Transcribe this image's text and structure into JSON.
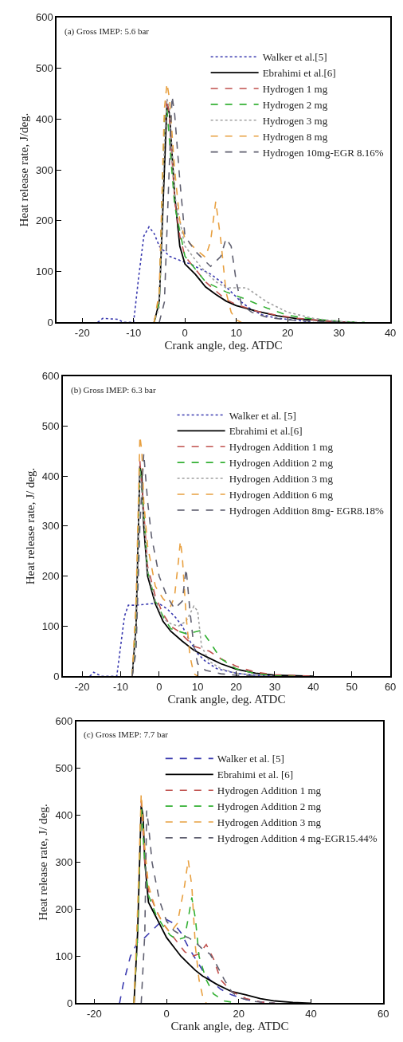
{
  "chart_data": [
    {
      "type": "line",
      "title": "(a) Gross IMEP: 5.6 bar",
      "xlabel": "Crank angle, deg. ATDC",
      "ylabel": "Heat release rate, J/deg.",
      "xlim": [
        -25,
        40
      ],
      "xticks": [
        -20,
        -10,
        0,
        10,
        20,
        30,
        40
      ],
      "ylim": [
        0,
        600
      ],
      "yticks": [
        0,
        100,
        200,
        300,
        400,
        500,
        600
      ],
      "legend": "top right",
      "series": [
        {
          "name": "Walker et al.[5]",
          "color": "#3b3bb0",
          "line_style": "dotted",
          "x": [
            -17,
            -16,
            -13,
            -12,
            -10,
            -9,
            -8,
            -7,
            -6,
            -5,
            -4,
            -3,
            -1,
            1,
            3,
            5,
            7,
            9,
            11,
            13,
            15,
            18,
            22,
            25
          ],
          "values": [
            0,
            8,
            6,
            0,
            0,
            90,
            170,
            188,
            175,
            150,
            140,
            130,
            122,
            115,
            105,
            95,
            80,
            60,
            40,
            25,
            15,
            8,
            4,
            0
          ]
        },
        {
          "name": "Ebrahimi et al.[6]",
          "color": "#000000",
          "line_style": "solid",
          "x": [
            -6,
            -5,
            -4,
            -3.5,
            -3,
            -2,
            -1,
            0,
            2,
            4,
            6,
            8,
            10,
            14,
            18,
            22,
            26,
            30,
            33
          ],
          "values": [
            0,
            40,
            300,
            430,
            410,
            250,
            150,
            115,
            95,
            70,
            55,
            42,
            33,
            22,
            13,
            7,
            4,
            1,
            0
          ]
        },
        {
          "name": "Hydrogen 1 mg",
          "color": "#c0504d",
          "line_style": "dashed",
          "x": [
            -6,
            -5,
            -4,
            -3.5,
            -3,
            -2,
            -1,
            0,
            2,
            4,
            6,
            8,
            10,
            14,
            18,
            22,
            26,
            30,
            32
          ],
          "values": [
            0,
            50,
            380,
            440,
            400,
            240,
            170,
            130,
            105,
            80,
            62,
            45,
            35,
            22,
            14,
            8,
            4,
            1,
            0
          ]
        },
        {
          "name": "Hydrogen 2 mg",
          "color": "#33b033",
          "line_style": "dashed",
          "x": [
            -6,
            -5,
            -4,
            -3.5,
            -2,
            0,
            4,
            8,
            12,
            16,
            20,
            24,
            28,
            32,
            35
          ],
          "values": [
            0,
            40,
            400,
            420,
            230,
            130,
            80,
            60,
            45,
            28,
            14,
            8,
            4,
            1,
            0
          ]
        },
        {
          "name": "Hydrogen 3 mg",
          "color": "#a0a0a0",
          "line_style": "dotted",
          "x": [
            -6,
            -5,
            -4,
            -3.5,
            -3,
            -2,
            0,
            3,
            6,
            8,
            12,
            16,
            20,
            25,
            30,
            34
          ],
          "values": [
            0,
            30,
            350,
            440,
            420,
            250,
            150,
            110,
            80,
            68,
            68,
            40,
            20,
            8,
            2,
            0
          ]
        },
        {
          "name": "Hydrogen 8 mg",
          "color": "#e8a040",
          "line_style": "dashed",
          "x": [
            -6,
            -5,
            -4,
            -3.5,
            -3,
            -2,
            -1,
            0,
            2,
            4,
            5,
            6,
            7,
            8,
            9,
            10,
            11
          ],
          "values": [
            0,
            60,
            420,
            470,
            440,
            300,
            200,
            165,
            145,
            128,
            160,
            238,
            160,
            60,
            20,
            5,
            0
          ]
        },
        {
          "name": "Hydrogen 10mg-EGR 8.16%",
          "color": "#606070",
          "line_style": "dashed",
          "x": [
            -5,
            -4,
            -3,
            -2.5,
            -2,
            -1,
            0,
            2,
            4,
            5,
            7,
            8,
            9,
            10,
            11,
            13,
            16,
            20,
            30
          ],
          "values": [
            0,
            40,
            320,
            445,
            410,
            280,
            170,
            140,
            120,
            110,
            130,
            165,
            150,
            80,
            35,
            20,
            10,
            5,
            0
          ]
        }
      ]
    },
    {
      "type": "line",
      "title": "(b) Gross IMEP: 6.3 bar",
      "xlabel": "Crank angle, deg. ATDC",
      "ylabel": "Heat release rate, J/ deg.",
      "xlim": [
        -25,
        60
      ],
      "xticks": [
        -20,
        -10,
        0,
        10,
        20,
        30,
        40,
        50,
        60
      ],
      "ylim": [
        0,
        600
      ],
      "yticks": [
        0,
        100,
        200,
        300,
        400,
        500,
        600
      ],
      "legend": "top right",
      "series": [
        {
          "name": "Walker et al. [5]",
          "color": "#3b3bb0",
          "line_style": "dotted",
          "x": [
            -18,
            -17,
            -15,
            -11,
            -10,
            -9,
            -8,
            -6,
            -2,
            0,
            2,
            4,
            6,
            8,
            10,
            12,
            15,
            20,
            25,
            30
          ],
          "values": [
            0,
            8,
            0,
            0,
            60,
            120,
            142,
            142,
            145,
            145,
            135,
            120,
            100,
            70,
            45,
            30,
            15,
            6,
            2,
            0
          ]
        },
        {
          "name": "Ebrahimi et al.[6]",
          "color": "#000000",
          "line_style": "solid",
          "x": [
            -7,
            -6,
            -5,
            -4.5,
            -4,
            -3,
            -1,
            1,
            3,
            6,
            9,
            12,
            16,
            20,
            25,
            30,
            40
          ],
          "values": [
            0,
            100,
            420,
            400,
            300,
            200,
            145,
            110,
            90,
            70,
            52,
            40,
            25,
            14,
            6,
            2,
            0
          ]
        },
        {
          "name": "Hydrogen Addition 1 mg",
          "color": "#c0504d",
          "line_style": "dashed",
          "x": [
            -7,
            -6,
            -5,
            -4,
            -3,
            -1,
            1,
            3,
            5,
            7,
            9,
            11,
            13,
            16,
            20,
            25,
            30,
            40
          ],
          "values": [
            0,
            100,
            430,
            330,
            220,
            160,
            125,
            100,
            90,
            75,
            60,
            55,
            50,
            35,
            20,
            8,
            3,
            0
          ]
        },
        {
          "name": "Hydrogen Addition 2 mg",
          "color": "#33b033",
          "line_style": "dashed",
          "x": [
            -7,
            -6,
            -5,
            -4,
            -3,
            -1,
            1,
            3,
            5,
            7,
            9,
            11,
            13,
            16,
            20,
            25,
            30,
            35
          ],
          "values": [
            0,
            100,
            420,
            330,
            210,
            150,
            120,
            95,
            90,
            85,
            88,
            92,
            70,
            35,
            15,
            5,
            1,
            0
          ]
        },
        {
          "name": "Hydrogen Addition 3 mg",
          "color": "#a0a0a0",
          "line_style": "dotted",
          "x": [
            -7,
            -6,
            -5,
            -4,
            -3,
            -1,
            1,
            3,
            5,
            7,
            9,
            10,
            11,
            13,
            16,
            20,
            25,
            30
          ],
          "values": [
            0,
            100,
            410,
            320,
            210,
            150,
            115,
            105,
            100,
            110,
            140,
            130,
            60,
            30,
            15,
            6,
            2,
            0
          ]
        },
        {
          "name": "Hydrogen Addition 6 mg",
          "color": "#e8a040",
          "line_style": "dashed",
          "x": [
            -7,
            -6,
            -5,
            -4.5,
            -4,
            -3,
            -1,
            1,
            3,
            4,
            5,
            5.5,
            6,
            7,
            8,
            9,
            10
          ],
          "values": [
            0,
            150,
            480,
            450,
            350,
            260,
            180,
            155,
            140,
            160,
            230,
            270,
            240,
            120,
            40,
            5,
            0
          ]
        },
        {
          "name": "Hydrogen Addition 8mg- EGR8.18%",
          "color": "#606070",
          "line_style": "dashed",
          "x": [
            -7,
            -6,
            -5,
            -4,
            -3,
            -2,
            0,
            2,
            4,
            6,
            7,
            8,
            9,
            10,
            12,
            16,
            20,
            25
          ],
          "values": [
            0,
            50,
            300,
            445,
            350,
            280,
            200,
            160,
            135,
            150,
            215,
            130,
            60,
            25,
            12,
            5,
            2,
            0
          ]
        }
      ]
    },
    {
      "type": "line",
      "title": "(c) Gross IMEP: 7.7 bar",
      "xlabel": "Crank angle, deg. ATDC",
      "ylabel": "Heat release rate, J/ deg.",
      "xlim": [
        -25,
        60
      ],
      "xticks": [
        -20,
        0,
        20,
        40,
        60
      ],
      "ylim": [
        0,
        600
      ],
      "yticks": [
        0,
        100,
        200,
        300,
        400,
        500,
        600
      ],
      "legend": "top right",
      "series": [
        {
          "name": "Walker et al. [5]",
          "color": "#3b3bb0",
          "line_style": "dashed",
          "x": [
            -13,
            -12,
            -10,
            -8,
            -6,
            -4,
            -2,
            0,
            2,
            4,
            6,
            8,
            10,
            12,
            15,
            18,
            22,
            26,
            30
          ],
          "values": [
            0,
            40,
            100,
            130,
            140,
            155,
            170,
            178,
            170,
            150,
            120,
            95,
            70,
            50,
            30,
            18,
            8,
            3,
            0
          ]
        },
        {
          "name": "Ebrahimi et al. [6]",
          "color": "#000000",
          "line_style": "solid",
          "x": [
            -9,
            -8,
            -7,
            -6.5,
            -6,
            -5,
            -4,
            -2,
            0,
            2,
            4,
            6,
            8,
            10,
            14,
            18,
            22,
            26,
            30,
            35,
            40
          ],
          "values": [
            0,
            150,
            420,
            400,
            300,
            215,
            200,
            170,
            140,
            120,
            100,
            85,
            70,
            58,
            40,
            25,
            18,
            10,
            5,
            2,
            0
          ]
        },
        {
          "name": "Hydrogen Addition 1 mg",
          "color": "#c0504d",
          "line_style": "dashed",
          "x": [
            -9,
            -8,
            -7,
            -6,
            -5,
            -3,
            -1,
            1,
            3,
            5,
            7,
            9,
            11,
            13,
            15,
            18,
            22,
            26,
            30
          ],
          "values": [
            0,
            150,
            430,
            300,
            240,
            200,
            170,
            150,
            130,
            110,
            100,
            105,
            125,
            95,
            50,
            25,
            10,
            3,
            0
          ]
        },
        {
          "name": "Hydrogen Addition 2 mg",
          "color": "#33b033",
          "line_style": "dashed",
          "x": [
            -9,
            -8,
            -7,
            -6,
            -5,
            -3,
            -1,
            1,
            3,
            5,
            6,
            7,
            8,
            9,
            11,
            13,
            16,
            20
          ],
          "values": [
            0,
            150,
            420,
            300,
            230,
            190,
            165,
            145,
            135,
            140,
            180,
            225,
            180,
            100,
            50,
            20,
            5,
            0
          ]
        },
        {
          "name": "Hydrogen Addition 3 mg",
          "color": "#e8a040",
          "line_style": "dashed",
          "x": [
            -9,
            -8,
            -7,
            -6,
            -5,
            -3,
            -1,
            1,
            3,
            5,
            6,
            7,
            8,
            9,
            10,
            11
          ],
          "values": [
            0,
            200,
            445,
            330,
            250,
            200,
            170,
            150,
            170,
            250,
            305,
            250,
            120,
            50,
            15,
            0
          ]
        },
        {
          "name": "Hydrogen Addition 4 mg-EGR15.44%",
          "color": "#606070",
          "line_style": "dashed",
          "x": [
            -7,
            -6,
            -5.5,
            -5,
            -4,
            -2,
            0,
            2,
            4,
            6,
            8,
            10,
            12,
            14,
            16,
            18,
            20,
            24,
            30
          ],
          "values": [
            0,
            150,
            410,
            380,
            300,
            220,
            175,
            155,
            145,
            140,
            130,
            115,
            105,
            80,
            50,
            25,
            12,
            4,
            0
          ]
        }
      ]
    }
  ]
}
